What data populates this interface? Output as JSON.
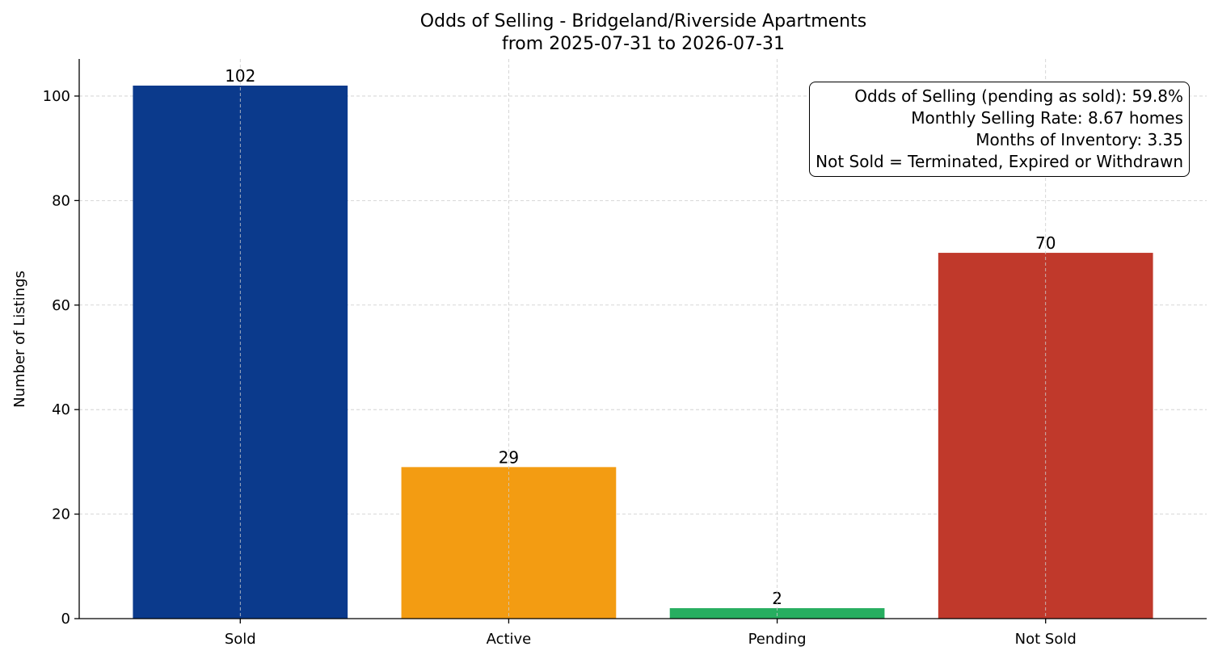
{
  "chart_data": {
    "type": "bar",
    "title": "Odds of Selling - Bridgeland/Riverside Apartments",
    "subtitle": "from 2025-07-31 to 2026-07-31",
    "xlabel": "",
    "ylabel": "Number of Listings",
    "categories": [
      "Sold",
      "Active",
      "Pending",
      "Not Sold"
    ],
    "values": [
      102,
      29,
      2,
      70
    ],
    "data_labels": [
      "102",
      "29",
      "2",
      "70"
    ],
    "colors": [
      "#0b3a8c",
      "#f39c12",
      "#27ae60",
      "#c0392b"
    ],
    "ylim": [
      0,
      107.1
    ],
    "yticks": [
      0,
      20,
      40,
      60,
      80,
      100
    ],
    "ytick_labels": [
      "0",
      "20",
      "40",
      "60",
      "80",
      "100"
    ],
    "grid": true,
    "annotation": {
      "placement": "top-right",
      "lines": [
        "Odds of Selling (pending as sold): 59.8%",
        "Monthly Selling Rate: 8.67 homes",
        "Months of Inventory: 3.35",
        "Not Sold = Terminated, Expired or Withdrawn"
      ]
    }
  }
}
